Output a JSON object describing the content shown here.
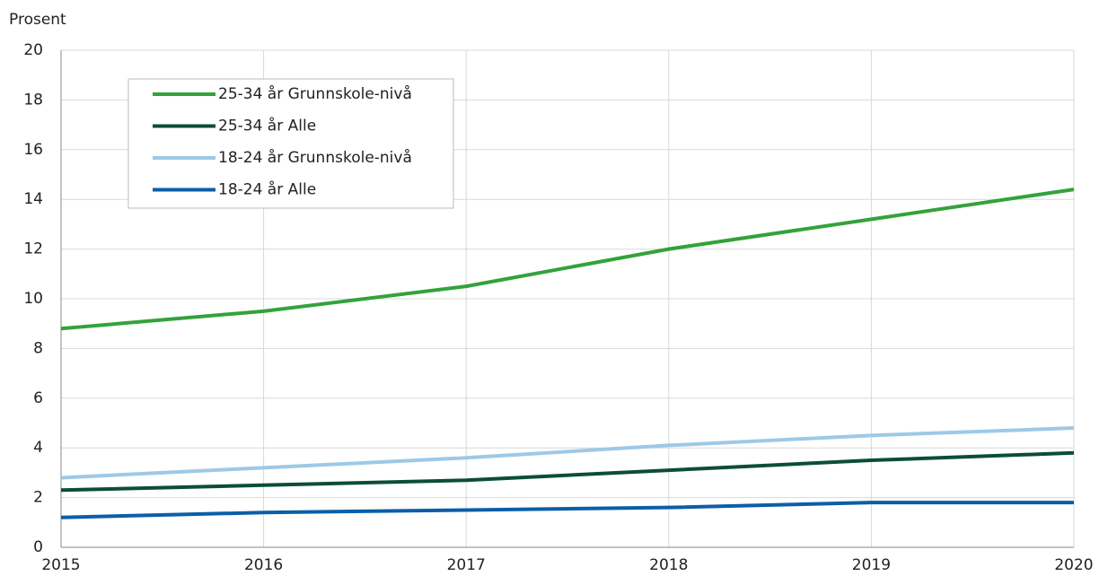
{
  "chart_data": {
    "type": "line",
    "y_label": "Prosent",
    "x": [
      2015,
      2016,
      2017,
      2018,
      2019,
      2020
    ],
    "xlim": [
      2015,
      2020
    ],
    "xticks": [
      2015,
      2016,
      2017,
      2018,
      2019,
      2020
    ],
    "ylim": [
      0,
      20
    ],
    "yticks": [
      0,
      2,
      4,
      6,
      8,
      10,
      12,
      14,
      16,
      18,
      20
    ],
    "grid": true,
    "legend": "upper left",
    "series": [
      {
        "name": "25-34 år Grunnskole-nivå",
        "color": "#33a23b",
        "values": [
          8.8,
          9.5,
          10.5,
          12.0,
          13.2,
          14.4
        ]
      },
      {
        "name": "25-34 år Alle",
        "color": "#0b4d3b",
        "values": [
          2.3,
          2.5,
          2.7,
          3.1,
          3.5,
          3.8
        ]
      },
      {
        "name": "18-24 år Grunnskole-nivå",
        "color": "#9dc9e8",
        "values": [
          2.8,
          3.2,
          3.6,
          4.1,
          4.5,
          4.8
        ]
      },
      {
        "name": "18-24 år Alle",
        "color": "#0b5ea8",
        "values": [
          1.2,
          1.4,
          1.5,
          1.6,
          1.8,
          1.8
        ]
      }
    ]
  }
}
